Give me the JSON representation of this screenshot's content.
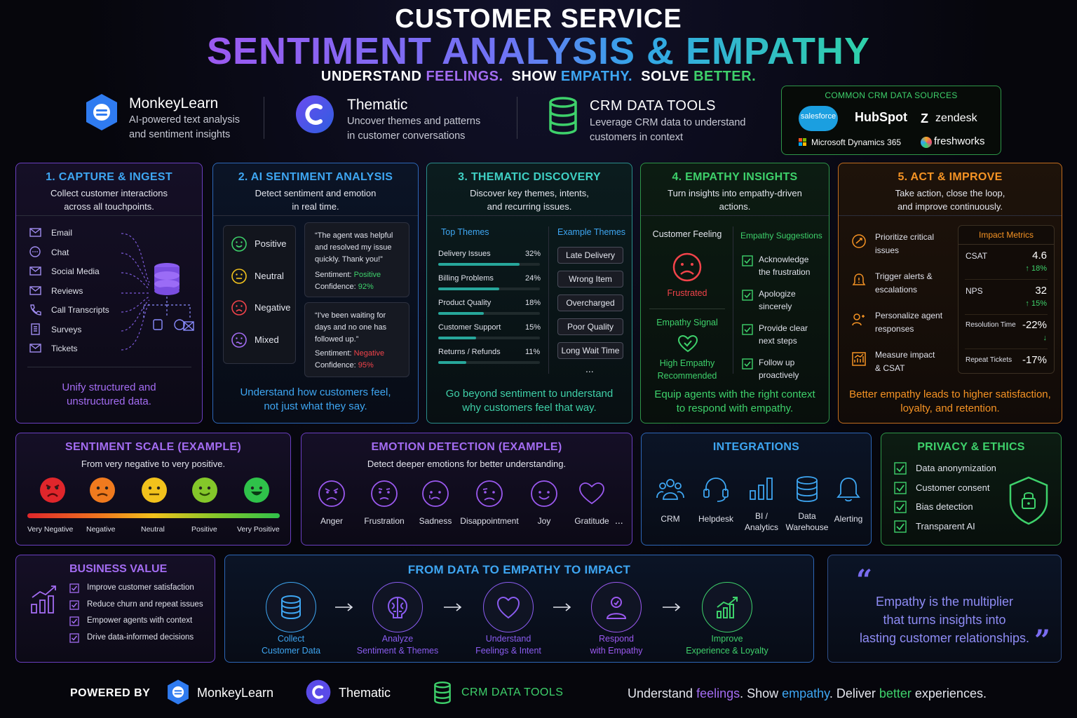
{
  "header": {
    "title_line1": "CUSTOMER SERVICE",
    "title_line2": "SENTIMENT ANALYSIS & EMPATHY",
    "tagline": {
      "a": "UNDERSTAND ",
      "b": "FEELINGS.",
      "c": "  SHOW ",
      "d": "EMPATHY.",
      "e": "  SOLVE ",
      "f": "BETTER."
    }
  },
  "brands": [
    {
      "name": "MonkeyLearn",
      "desc1": "AI-powered text analysis",
      "desc2": "and sentiment insights"
    },
    {
      "name": "Thematic",
      "desc1": "Uncover themes and patterns",
      "desc2": "in customer conversations"
    },
    {
      "name": "CRM DATA TOOLS",
      "desc1": "Leverage CRM data to understand",
      "desc2": "customers in context"
    }
  ],
  "crm_sources": {
    "title": "COMMON CRM DATA SOURCES",
    "items": [
      "salesforce",
      "HubSpot",
      "zendesk",
      "Microsoft Dynamics 365",
      "freshworks"
    ]
  },
  "step1": {
    "title": "1. CAPTURE & INGEST",
    "sub1": "Collect customer interactions",
    "sub2": "across all touchpoints.",
    "channels": [
      "Email",
      "Chat",
      "Social Media",
      "Reviews",
      "Call Transcripts",
      "Surveys",
      "Tickets"
    ],
    "foot1": "Unify structured and",
    "foot2": "unstructured data."
  },
  "step2": {
    "title": "2. AI SENTIMENT ANALYSIS",
    "sub1": "Detect sentiment and emotion",
    "sub2": "in real time.",
    "labels": [
      "Positive",
      "Neutral",
      "Negative",
      "Mixed"
    ],
    "q1": {
      "l1": "“The agent was helpful",
      "l2": "and resolved my issue",
      "l3": "quickly. Thank you!”",
      "sent_label": "Sentiment: ",
      "sent": "Positive",
      "conf_label": "Confidence: ",
      "conf": "92%"
    },
    "q2": {
      "l1": "“I've been waiting for",
      "l2": "days and no one has",
      "l3": "followed up.”",
      "sent_label": "Sentiment: ",
      "sent": "Negative",
      "conf_label": "Confidence: ",
      "conf": "95%"
    },
    "foot1": "Understand how customers feel,",
    "foot2": "not just what they say."
  },
  "step3": {
    "title": "3. THEMATIC DISCOVERY",
    "sub1": "Discover key themes, intents,",
    "sub2": "and recurring issues.",
    "top_label": "Top Themes",
    "ex_label": "Example Themes",
    "themes": [
      {
        "name": "Delivery Issues",
        "pct": "32%",
        "value": 32
      },
      {
        "name": "Billing Problems",
        "pct": "24%",
        "value": 24
      },
      {
        "name": "Product Quality",
        "pct": "18%",
        "value": 18
      },
      {
        "name": "Customer Support",
        "pct": "15%",
        "value": 15
      },
      {
        "name": "Returns / Refunds",
        "pct": "11%",
        "value": 11
      }
    ],
    "examples": [
      "Late Delivery",
      "Wrong Item",
      "Overcharged",
      "Poor Quality",
      "Long Wait Time"
    ],
    "more": "...",
    "foot1": "Go beyond sentiment to understand",
    "foot2": "why customers feel that way."
  },
  "step4": {
    "title": "4. EMPATHY INSIGHTS",
    "sub1": "Turn insights into empathy-driven",
    "sub2": "actions.",
    "feeling_label": "Customer Feeling",
    "feeling": "Frustrated",
    "signal_label": "Empathy Signal",
    "signal1": "High Empathy",
    "signal2": "Recommended",
    "sugg_label": "Empathy Suggestions",
    "suggestions": [
      [
        "Acknowledge",
        "the frustration"
      ],
      [
        "Apologize",
        "sincerely"
      ],
      [
        "Provide clear",
        "next steps"
      ],
      [
        "Follow up",
        "proactively"
      ]
    ],
    "foot1": "Equip agents with the right context",
    "foot2": "to respond with empathy."
  },
  "step5": {
    "title": "5. ACT & IMPROVE",
    "sub1": "Take action, close the loop,",
    "sub2": "and improve continuously.",
    "actions": [
      [
        "Prioritize critical",
        "issues"
      ],
      [
        "Trigger alerts &",
        "escalations"
      ],
      [
        "Personalize agent",
        "responses"
      ],
      [
        "Measure impact",
        "& CSAT"
      ]
    ],
    "metrics_label": "Impact Metrics",
    "metrics": [
      {
        "name": "CSAT",
        "value": "4.6",
        "delta": "↑ 18%"
      },
      {
        "name": "NPS",
        "value": "32",
        "delta": "↑ 15%"
      },
      {
        "name": "Resolution Time",
        "value": "-22%",
        "delta": "↓"
      },
      {
        "name": "Repeat Tickets",
        "value": "-17%",
        "delta": ""
      }
    ],
    "foot1": "Better empathy leads to higher satisfaction,",
    "foot2": "loyalty, and retention."
  },
  "scale": {
    "title": "SENTIMENT SCALE (EXAMPLE)",
    "sub": "From very negative to very positive.",
    "labels": [
      "Very Negative",
      "Negative",
      "Neutral",
      "Positive",
      "Very Positive"
    ],
    "colors": [
      "#e0262b",
      "#f07a1e",
      "#f2c21c",
      "#84c72a",
      "#2fc24a"
    ]
  },
  "emotion": {
    "title": "EMOTION DETECTION (EXAMPLE)",
    "sub": "Detect deeper emotions for better understanding.",
    "labels": [
      "Anger",
      "Frustration",
      "Sadness",
      "Disappointment",
      "Joy",
      "Gratitude"
    ],
    "more": "..."
  },
  "integrations": {
    "title": "INTEGRATIONS",
    "items": [
      [
        "CRM",
        ""
      ],
      [
        "Helpdesk",
        ""
      ],
      [
        "BI /",
        "Analytics"
      ],
      [
        "Data",
        "Warehouse"
      ],
      [
        "Alerting",
        ""
      ]
    ]
  },
  "privacy": {
    "title": "PRIVACY & ETHICS",
    "items": [
      "Data anonymization",
      "Customer consent",
      "Bias detection",
      "Transparent AI"
    ]
  },
  "business": {
    "title": "BUSINESS VALUE",
    "items": [
      "Improve customer satisfaction",
      "Reduce churn and repeat issues",
      "Empower agents with context",
      "Drive data-informed decisions"
    ]
  },
  "flow": {
    "title": "FROM DATA TO EMPATHY TO IMPACT",
    "steps": [
      [
        "Collect",
        "Customer Data"
      ],
      [
        "Analyze",
        "Sentiment & Themes"
      ],
      [
        "Understand",
        "Feelings & Intent"
      ],
      [
        "Respond",
        "with Empathy"
      ],
      [
        "Improve",
        "Experience & Loyalty"
      ]
    ],
    "colors": [
      "#3ea6f2",
      "#8a5cf0",
      "#8a5cf0",
      "#9b59f0",
      "#3ed16b"
    ]
  },
  "quote": {
    "l1": "Empathy is the multiplier",
    "l2": "that turns insights into",
    "l3": "lasting customer relationships."
  },
  "footer": {
    "powered": "POWERED BY",
    "b1": "MonkeyLearn",
    "b2": "Thematic",
    "b3": "CRM DATA TOOLS",
    "tag": {
      "a": "Understand ",
      "b": "feelings",
      "c": ". Show ",
      "d": "empathy",
      "e": ". Deliver ",
      "f": "better",
      "g": " experiences."
    }
  }
}
